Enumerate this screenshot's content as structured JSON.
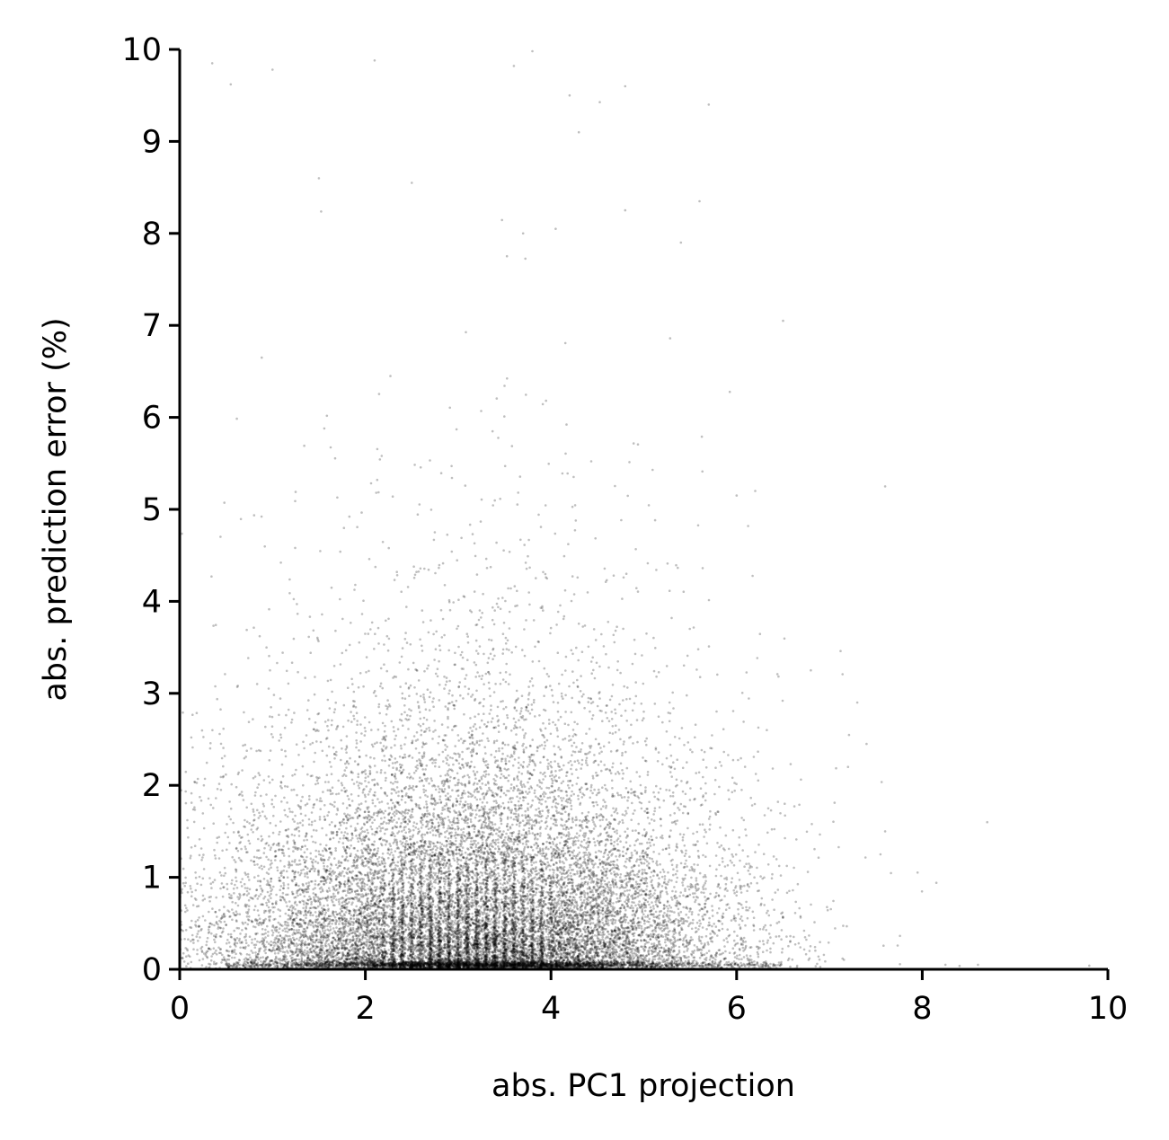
{
  "chart_data": {
    "type": "scatter",
    "title": "",
    "xlabel": "abs. PC1 projection",
    "ylabel": "abs. prediction error (%)",
    "xlim": [
      0,
      10
    ],
    "ylim": [
      0,
      10
    ],
    "xticks": [
      "0",
      "2",
      "4",
      "6",
      "8",
      "10"
    ],
    "yticks": [
      "0",
      "1",
      "2",
      "3",
      "4",
      "5",
      "6",
      "7",
      "8",
      "9",
      "10"
    ],
    "grid": false,
    "legend": "none",
    "marker_color": "#000000",
    "marker_alpha": 0.25,
    "approx_point_count": 20000,
    "distribution": {
      "description_values": "dense cloud of small translucent points",
      "x_center": 3.2,
      "x_spread": 1.3,
      "y_median": 0.6,
      "dense_x_range": [
        2.2,
        4.0
      ],
      "dense_y_range": [
        0,
        2.5
      ],
      "baseline_band_y": 0.05,
      "baseline_band_x_range": [
        0.5,
        6.5
      ],
      "max_observed_x": 9.8,
      "max_observed_y": 10
    },
    "sample_points": [
      {
        "x": 0.35,
        "y": 9.85
      },
      {
        "x": 0.55,
        "y": 9.62
      },
      {
        "x": 1.0,
        "y": 9.78
      },
      {
        "x": 2.1,
        "y": 9.88
      },
      {
        "x": 3.6,
        "y": 9.82
      },
      {
        "x": 3.8,
        "y": 9.98
      },
      {
        "x": 4.2,
        "y": 9.5
      },
      {
        "x": 4.8,
        "y": 9.6
      },
      {
        "x": 5.7,
        "y": 9.4
      },
      {
        "x": 4.3,
        "y": 9.1
      },
      {
        "x": 1.5,
        "y": 8.6
      },
      {
        "x": 2.5,
        "y": 8.55
      },
      {
        "x": 3.7,
        "y": 8.0
      },
      {
        "x": 4.05,
        "y": 8.05
      },
      {
        "x": 5.4,
        "y": 7.9
      },
      {
        "x": 5.6,
        "y": 8.35
      },
      {
        "x": 6.5,
        "y": 7.05
      },
      {
        "x": 7.6,
        "y": 5.25
      },
      {
        "x": 6.0,
        "y": 5.15
      },
      {
        "x": 6.2,
        "y": 5.2
      },
      {
        "x": 7.3,
        "y": 2.9
      },
      {
        "x": 7.4,
        "y": 2.45
      },
      {
        "x": 7.2,
        "y": 2.2
      },
      {
        "x": 6.8,
        "y": 3.25
      },
      {
        "x": 7.6,
        "y": 1.5
      },
      {
        "x": 7.55,
        "y": 1.25
      },
      {
        "x": 8.7,
        "y": 1.6
      },
      {
        "x": 8.25,
        "y": 0.05
      },
      {
        "x": 8.6,
        "y": 0.05
      },
      {
        "x": 9.8,
        "y": 0.04
      }
    ]
  }
}
